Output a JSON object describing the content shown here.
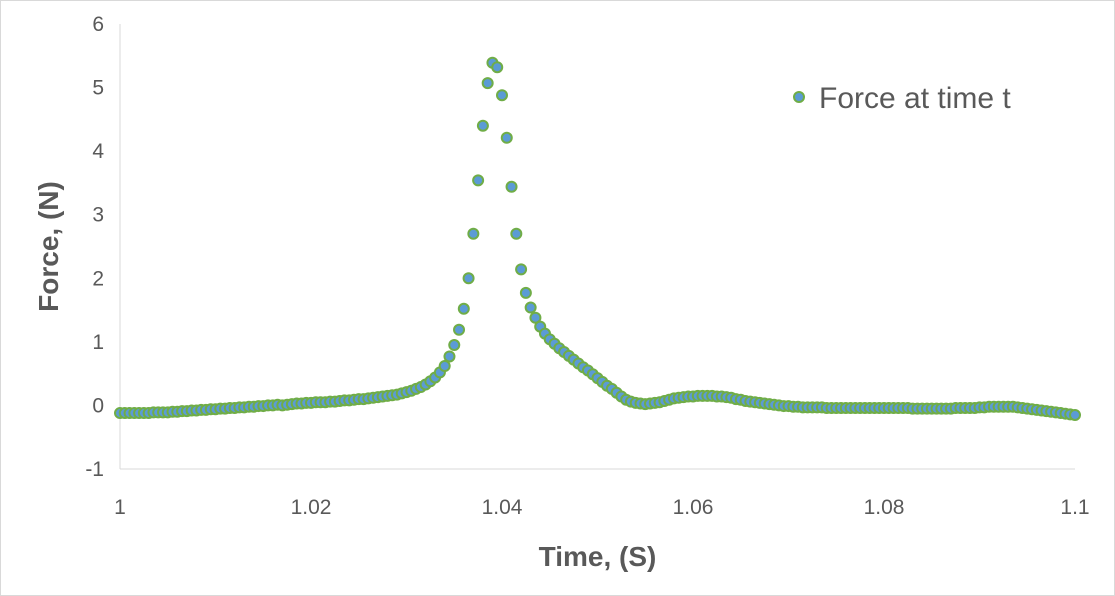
{
  "chart_data": {
    "type": "scatter",
    "title": "",
    "xlabel": "Time, (S)",
    "ylabel": "Force, (N)",
    "xlim": [
      1,
      1.1
    ],
    "ylim": [
      -1,
      6
    ],
    "x_ticks": [
      "1",
      "1.02",
      "1.04",
      "1.06",
      "1.08",
      "1.1"
    ],
    "y_ticks": [
      "-1",
      "0",
      "1",
      "2",
      "3",
      "4",
      "5",
      "6"
    ],
    "grid": false,
    "legend_position": "top-right",
    "marker_fill": "#5b9bd5",
    "marker_edge": "#70ad47",
    "series": [
      {
        "name": "Force at time t",
        "points": [
          [
            1.0,
            -0.12
          ],
          [
            1.0005,
            -0.12
          ],
          [
            1.001,
            -0.12
          ],
          [
            1.0015,
            -0.12
          ],
          [
            1.002,
            -0.12
          ],
          [
            1.0025,
            -0.12
          ],
          [
            1.003,
            -0.12
          ],
          [
            1.0035,
            -0.11
          ],
          [
            1.004,
            -0.11
          ],
          [
            1.0045,
            -0.11
          ],
          [
            1.005,
            -0.11
          ],
          [
            1.0055,
            -0.1
          ],
          [
            1.006,
            -0.1
          ],
          [
            1.0065,
            -0.09
          ],
          [
            1.007,
            -0.09
          ],
          [
            1.0075,
            -0.08
          ],
          [
            1.008,
            -0.08
          ],
          [
            1.0085,
            -0.07
          ],
          [
            1.009,
            -0.07
          ],
          [
            1.0095,
            -0.06
          ],
          [
            1.01,
            -0.06
          ],
          [
            1.0105,
            -0.05
          ],
          [
            1.011,
            -0.05
          ],
          [
            1.0115,
            -0.04
          ],
          [
            1.012,
            -0.04
          ],
          [
            1.0125,
            -0.03
          ],
          [
            1.013,
            -0.03
          ],
          [
            1.0135,
            -0.02
          ],
          [
            1.014,
            -0.02
          ],
          [
            1.0145,
            -0.01
          ],
          [
            1.015,
            -0.01
          ],
          [
            1.0155,
            0.0
          ],
          [
            1.016,
            0.0
          ],
          [
            1.0165,
            0.01
          ],
          [
            1.017,
            0.0
          ],
          [
            1.0175,
            0.01
          ],
          [
            1.018,
            0.02
          ],
          [
            1.0185,
            0.03
          ],
          [
            1.019,
            0.03
          ],
          [
            1.0195,
            0.04
          ],
          [
            1.02,
            0.04
          ],
          [
            1.0205,
            0.05
          ],
          [
            1.021,
            0.05
          ],
          [
            1.0215,
            0.05
          ],
          [
            1.022,
            0.06
          ],
          [
            1.0225,
            0.06
          ],
          [
            1.023,
            0.07
          ],
          [
            1.0235,
            0.08
          ],
          [
            1.024,
            0.08
          ],
          [
            1.0245,
            0.09
          ],
          [
            1.025,
            0.1
          ],
          [
            1.0255,
            0.1
          ],
          [
            1.026,
            0.11
          ],
          [
            1.0265,
            0.12
          ],
          [
            1.027,
            0.13
          ],
          [
            1.0275,
            0.14
          ],
          [
            1.028,
            0.15
          ],
          [
            1.0285,
            0.16
          ],
          [
            1.029,
            0.17
          ],
          [
            1.0295,
            0.19
          ],
          [
            1.03,
            0.21
          ],
          [
            1.0305,
            0.23
          ],
          [
            1.031,
            0.26
          ],
          [
            1.0315,
            0.29
          ],
          [
            1.032,
            0.33
          ],
          [
            1.0325,
            0.38
          ],
          [
            1.033,
            0.44
          ],
          [
            1.0335,
            0.52
          ],
          [
            1.034,
            0.62
          ],
          [
            1.0345,
            0.77
          ],
          [
            1.035,
            0.95
          ],
          [
            1.0355,
            1.19
          ],
          [
            1.036,
            1.52
          ],
          [
            1.0365,
            2.0
          ],
          [
            1.037,
            2.7
          ],
          [
            1.0375,
            3.54
          ],
          [
            1.038,
            4.4
          ],
          [
            1.0385,
            5.07
          ],
          [
            1.039,
            5.39
          ],
          [
            1.0395,
            5.32
          ],
          [
            1.04,
            4.88
          ],
          [
            1.0405,
            4.21
          ],
          [
            1.041,
            3.44
          ],
          [
            1.0415,
            2.7
          ],
          [
            1.042,
            2.14
          ],
          [
            1.0425,
            1.77
          ],
          [
            1.043,
            1.54
          ],
          [
            1.0435,
            1.38
          ],
          [
            1.044,
            1.24
          ],
          [
            1.0445,
            1.13
          ],
          [
            1.045,
            1.04
          ],
          [
            1.0455,
            0.97
          ],
          [
            1.046,
            0.9
          ],
          [
            1.0465,
            0.84
          ],
          [
            1.047,
            0.78
          ],
          [
            1.0475,
            0.72
          ],
          [
            1.048,
            0.66
          ],
          [
            1.0485,
            0.6
          ],
          [
            1.049,
            0.55
          ],
          [
            1.0495,
            0.49
          ],
          [
            1.05,
            0.43
          ],
          [
            1.0505,
            0.37
          ],
          [
            1.051,
            0.31
          ],
          [
            1.0515,
            0.26
          ],
          [
            1.052,
            0.2
          ],
          [
            1.0525,
            0.14
          ],
          [
            1.053,
            0.09
          ],
          [
            1.0535,
            0.06
          ],
          [
            1.054,
            0.04
          ],
          [
            1.0545,
            0.03
          ],
          [
            1.055,
            0.02
          ],
          [
            1.0555,
            0.03
          ],
          [
            1.056,
            0.04
          ],
          [
            1.0565,
            0.05
          ],
          [
            1.057,
            0.07
          ],
          [
            1.0575,
            0.09
          ],
          [
            1.058,
            0.11
          ],
          [
            1.0585,
            0.12
          ],
          [
            1.059,
            0.13
          ],
          [
            1.0595,
            0.14
          ],
          [
            1.06,
            0.14
          ],
          [
            1.0605,
            0.15
          ],
          [
            1.061,
            0.15
          ],
          [
            1.0615,
            0.15
          ],
          [
            1.062,
            0.15
          ],
          [
            1.0625,
            0.14
          ],
          [
            1.063,
            0.14
          ],
          [
            1.0635,
            0.13
          ],
          [
            1.064,
            0.12
          ],
          [
            1.0645,
            0.1
          ],
          [
            1.065,
            0.09
          ],
          [
            1.0655,
            0.07
          ],
          [
            1.066,
            0.06
          ],
          [
            1.0665,
            0.05
          ],
          [
            1.067,
            0.04
          ],
          [
            1.0675,
            0.03
          ],
          [
            1.068,
            0.02
          ],
          [
            1.0685,
            0.01
          ],
          [
            1.069,
            0.0
          ],
          [
            1.0695,
            -0.01
          ],
          [
            1.07,
            -0.01
          ],
          [
            1.0705,
            -0.02
          ],
          [
            1.071,
            -0.02
          ],
          [
            1.0715,
            -0.03
          ],
          [
            1.072,
            -0.03
          ],
          [
            1.0725,
            -0.03
          ],
          [
            1.073,
            -0.03
          ],
          [
            1.0735,
            -0.03
          ],
          [
            1.074,
            -0.04
          ],
          [
            1.0745,
            -0.04
          ],
          [
            1.075,
            -0.04
          ],
          [
            1.0755,
            -0.04
          ],
          [
            1.076,
            -0.04
          ],
          [
            1.0765,
            -0.04
          ],
          [
            1.077,
            -0.04
          ],
          [
            1.0775,
            -0.04
          ],
          [
            1.078,
            -0.04
          ],
          [
            1.0785,
            -0.04
          ],
          [
            1.079,
            -0.04
          ],
          [
            1.0795,
            -0.04
          ],
          [
            1.08,
            -0.04
          ],
          [
            1.0805,
            -0.04
          ],
          [
            1.081,
            -0.04
          ],
          [
            1.0815,
            -0.04
          ],
          [
            1.082,
            -0.04
          ],
          [
            1.0825,
            -0.04
          ],
          [
            1.083,
            -0.05
          ],
          [
            1.0835,
            -0.05
          ],
          [
            1.084,
            -0.05
          ],
          [
            1.0845,
            -0.05
          ],
          [
            1.085,
            -0.05
          ],
          [
            1.0855,
            -0.05
          ],
          [
            1.086,
            -0.05
          ],
          [
            1.0865,
            -0.05
          ],
          [
            1.087,
            -0.05
          ],
          [
            1.0875,
            -0.04
          ],
          [
            1.088,
            -0.04
          ],
          [
            1.0885,
            -0.04
          ],
          [
            1.089,
            -0.04
          ],
          [
            1.0895,
            -0.04
          ],
          [
            1.09,
            -0.03
          ],
          [
            1.0905,
            -0.03
          ],
          [
            1.091,
            -0.02
          ],
          [
            1.0915,
            -0.02
          ],
          [
            1.092,
            -0.02
          ],
          [
            1.0925,
            -0.02
          ],
          [
            1.093,
            -0.02
          ],
          [
            1.0935,
            -0.02
          ],
          [
            1.094,
            -0.03
          ],
          [
            1.0945,
            -0.04
          ],
          [
            1.095,
            -0.05
          ],
          [
            1.0955,
            -0.06
          ],
          [
            1.096,
            -0.07
          ],
          [
            1.0965,
            -0.08
          ],
          [
            1.097,
            -0.09
          ],
          [
            1.0975,
            -0.1
          ],
          [
            1.098,
            -0.11
          ],
          [
            1.0985,
            -0.12
          ],
          [
            1.099,
            -0.13
          ],
          [
            1.0995,
            -0.14
          ],
          [
            1.1,
            -0.15
          ]
        ]
      }
    ]
  }
}
